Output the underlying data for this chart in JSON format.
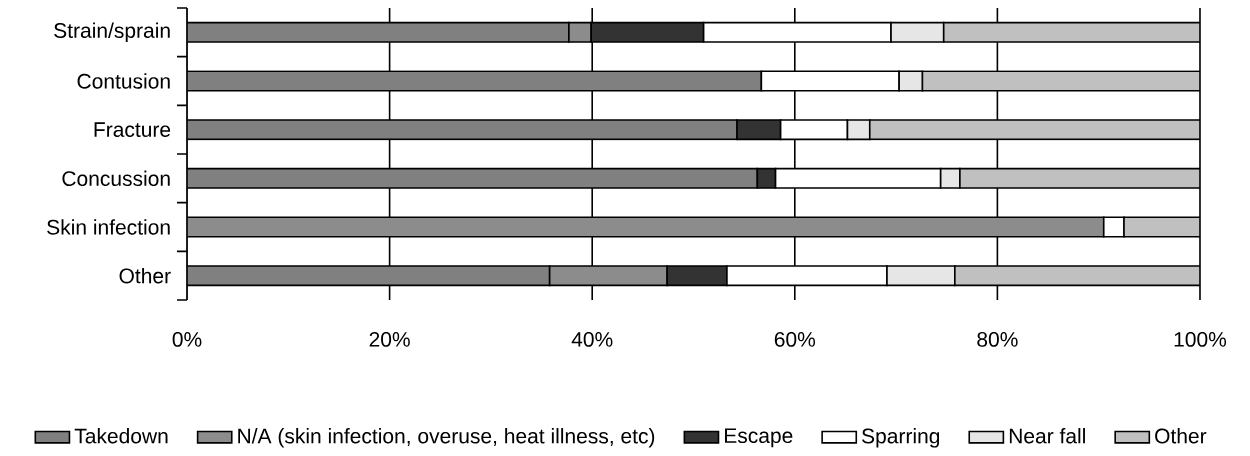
{
  "chart_data": {
    "type": "bar",
    "orientation": "horizontal",
    "stacked": true,
    "categories": [
      "Strain/sprain",
      "Contusion",
      "Fracture",
      "Concussion",
      "Skin infection",
      "Other"
    ],
    "series": [
      {
        "name": "Takedown",
        "color": "#808080",
        "values": [
          37.7,
          56.7,
          54.3,
          56.3,
          null,
          35.8
        ]
      },
      {
        "name": "N/A (skin infection, overuse, heat illness, etc)",
        "color": "#8c8c8c",
        "values": [
          2.2,
          null,
          null,
          null,
          90.5,
          11.6
        ]
      },
      {
        "name": "Escape",
        "color": "#333333",
        "values": [
          11.1,
          null,
          4.3,
          1.8,
          null,
          5.9
        ]
      },
      {
        "name": "Sparring",
        "color": "#ffffff",
        "values": [
          18.5,
          13.6,
          6.6,
          16.3,
          2.0,
          15.8
        ]
      },
      {
        "name": "Near fall",
        "color": "#e6e6e6",
        "values": [
          5.2,
          2.3,
          2.2,
          1.9,
          null,
          6.7
        ]
      },
      {
        "name": "Other",
        "color": "#c0c0c0",
        "values": [
          25.3,
          27.4,
          32.6,
          23.7,
          7.5,
          24.2
        ]
      }
    ],
    "xlim": [
      0,
      100
    ],
    "xticks": [
      {
        "value": 0,
        "label": "0%"
      },
      {
        "value": 20,
        "label": "20%"
      },
      {
        "value": 40,
        "label": "40%"
      },
      {
        "value": 60,
        "label": "60%"
      },
      {
        "value": 80,
        "label": "80%"
      },
      {
        "value": 100,
        "label": "100%"
      }
    ],
    "grid": "x",
    "legend": "bottom"
  }
}
